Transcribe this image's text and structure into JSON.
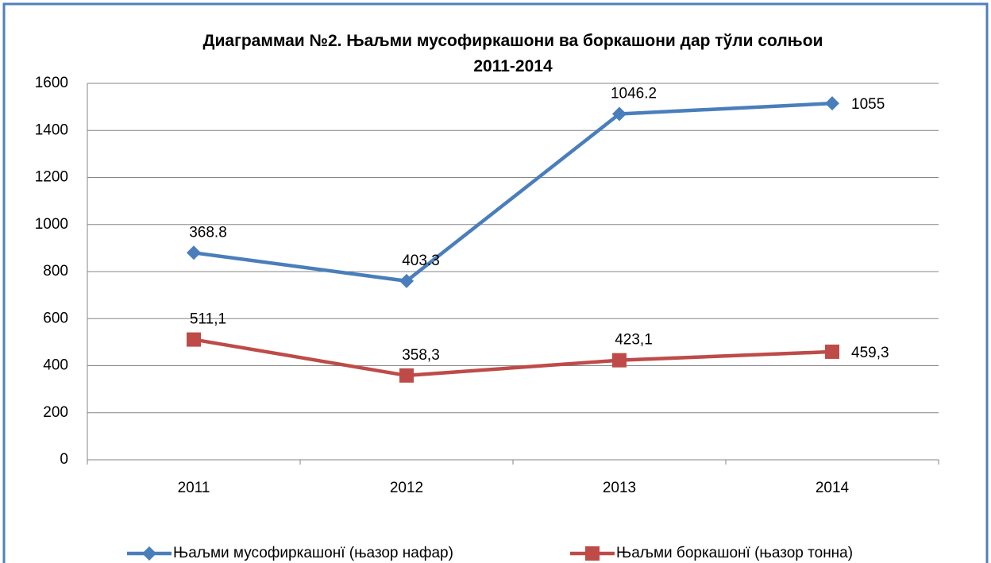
{
  "chart_data": {
    "type": "line",
    "title": "Диаграммаи №2. Њаљми мусофиркашони  ва  боркашони дар тўли солњои 2011-2014",
    "categories": [
      "2011",
      "2012",
      "2013",
      "2014"
    ],
    "series": [
      {
        "name": "Њаљми мусофиркашонї  (њазор нафар)",
        "color": "#4a7ebb",
        "marker": "diamond",
        "values": [
          880,
          760,
          1470,
          1515
        ],
        "annotations": [
          "368.8",
          "403.3",
          "1046.2",
          "1055"
        ]
      },
      {
        "name": "Њаљми боркашонї (њазор тонна)",
        "color": "#be4b48",
        "marker": "square",
        "values": [
          511.1,
          358.3,
          423.1,
          459.3
        ],
        "value_labels": [
          "511,1",
          "358,3",
          "423,1",
          "459,3"
        ]
      }
    ],
    "ylim": [
      0,
      1600
    ],
    "yticks": [
      0,
      200,
      400,
      600,
      800,
      1000,
      1200,
      1400,
      1600
    ],
    "grid": true,
    "legend": "bottom"
  }
}
